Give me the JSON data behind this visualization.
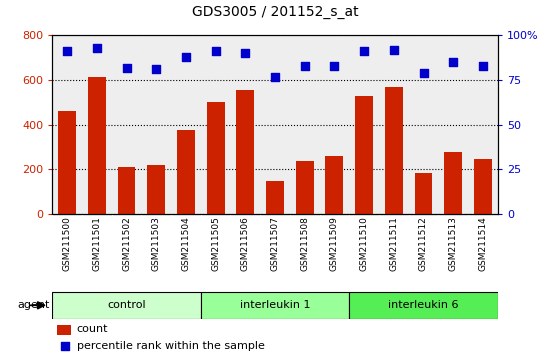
{
  "title": "GDS3005 / 201152_s_at",
  "samples": [
    "GSM211500",
    "GSM211501",
    "GSM211502",
    "GSM211503",
    "GSM211504",
    "GSM211505",
    "GSM211506",
    "GSM211507",
    "GSM211508",
    "GSM211509",
    "GSM211510",
    "GSM211511",
    "GSM211512",
    "GSM211513",
    "GSM211514"
  ],
  "counts": [
    460,
    615,
    210,
    220,
    375,
    500,
    555,
    150,
    240,
    260,
    530,
    570,
    185,
    280,
    245
  ],
  "percentiles": [
    91,
    93,
    82,
    81,
    88,
    91,
    90,
    77,
    83,
    83,
    91,
    92,
    79,
    85,
    83
  ],
  "groups": [
    "control",
    "control",
    "control",
    "control",
    "control",
    "interleukin 1",
    "interleukin 1",
    "interleukin 1",
    "interleukin 1",
    "interleukin 1",
    "interleukin 6",
    "interleukin 6",
    "interleukin 6",
    "interleukin 6",
    "interleukin 6"
  ],
  "group_colors": {
    "control": "#ccffcc",
    "interleukin 1": "#99ff99",
    "interleukin 6": "#55ee55"
  },
  "bar_color": "#cc2200",
  "dot_color": "#0000cc",
  "left_ylim": [
    0,
    800
  ],
  "left_yticks": [
    0,
    200,
    400,
    600,
    800
  ],
  "right_ylim": [
    0,
    100
  ],
  "right_yticks": [
    0,
    25,
    50,
    75,
    100
  ],
  "plot_bg": "#eeeeee",
  "legend_count_color": "#cc2200",
  "legend_pct_color": "#0000cc",
  "group_order": [
    "control",
    "interleukin 1",
    "interleukin 6"
  ]
}
